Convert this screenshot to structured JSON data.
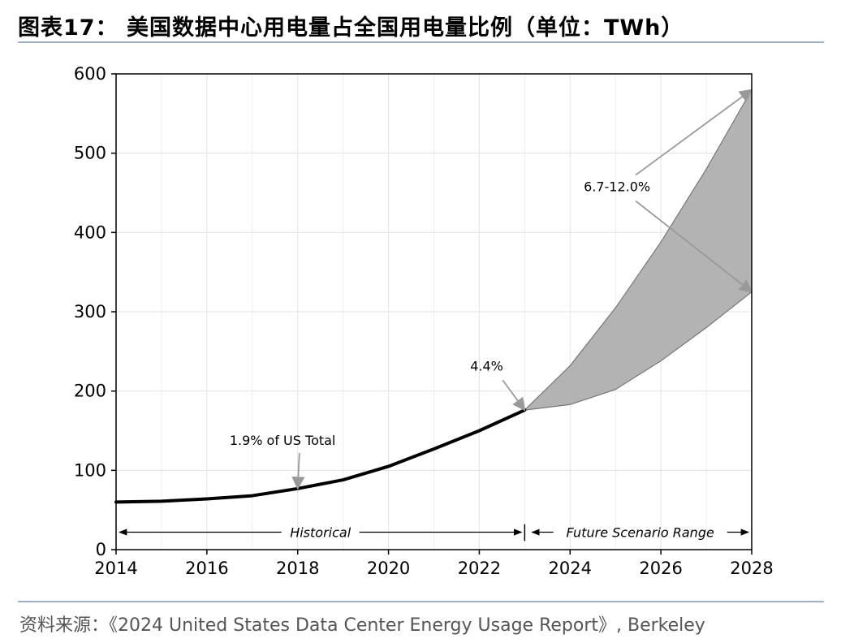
{
  "figure": {
    "title": "图表17：  美国数据中心用电量占全国用电量比例（单位：TWh）",
    "source": "资料来源：《2024 United States Data Center Energy Usage Report》, Berkeley"
  },
  "chart_data": {
    "type": "line",
    "title": "",
    "xlabel": "",
    "ylabel": "",
    "xlim": [
      2014,
      2028
    ],
    "ylim": [
      0,
      600
    ],
    "x_ticks": [
      2014,
      2016,
      2018,
      2020,
      2022,
      2024,
      2026,
      2028
    ],
    "y_ticks": [
      0,
      100,
      200,
      300,
      400,
      500,
      600
    ],
    "grid": true,
    "series": [
      {
        "x": [
          2014,
          2015,
          2016,
          2017,
          2018,
          2019,
          2020,
          2021,
          2022,
          2023
        ],
        "values": [
          60,
          61,
          64,
          68,
          77,
          88,
          105,
          127,
          150,
          176
        ]
      }
    ],
    "scenario_band": {
      "x": [
        2023,
        2024,
        2025,
        2026,
        2027,
        2028
      ],
      "low": [
        176,
        183,
        202,
        238,
        280,
        325
      ],
      "high": [
        176,
        232,
        305,
        388,
        480,
        580
      ]
    },
    "annotations": [
      {
        "text": "1.9% of US Total",
        "x": 2016.5,
        "y": 132,
        "target": [
          2018,
          77
        ]
      },
      {
        "text": "4.4%",
        "x": 2021.8,
        "y": 226,
        "target": [
          2023,
          176
        ]
      },
      {
        "text": "6.7-12.0%",
        "x": 2024.3,
        "y": 452,
        "targets": [
          [
            2028,
            580
          ],
          [
            2028,
            325
          ]
        ]
      }
    ],
    "ranges": [
      {
        "label": "Historical",
        "from": 2014,
        "to": 2023,
        "y": 22
      },
      {
        "label": "Future Scenario Range",
        "from": 2023,
        "to": 2028,
        "y": 22
      }
    ],
    "colors": {
      "line": "#000000",
      "band": "#b3b3b3",
      "band_edge": "#777777",
      "arrow": "#999999"
    }
  }
}
